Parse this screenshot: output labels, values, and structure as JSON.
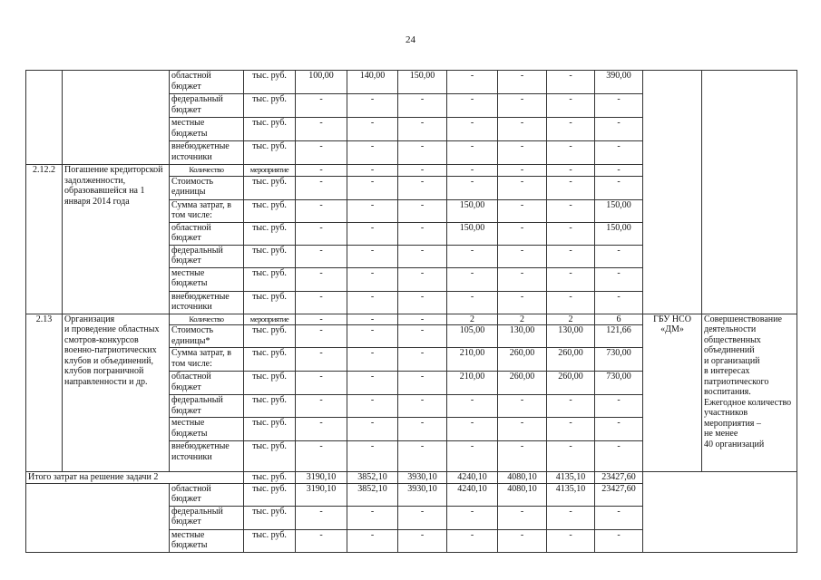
{
  "page_number": "24",
  "blocks": [
    {
      "num": "",
      "name": "",
      "executor": "",
      "result": "",
      "rows": [
        {
          "source": "областной бюджет",
          "unit": "тыс. руб.",
          "values": [
            "100,00",
            "140,00",
            "150,00",
            "-",
            "-",
            "-",
            "390,00"
          ]
        },
        {
          "source": "федеральный бюджет",
          "unit": "тыс. руб.",
          "values": [
            "-",
            "-",
            "-",
            "-",
            "-",
            "-",
            "-"
          ]
        },
        {
          "source": "местные бюджеты",
          "unit": "тыс. руб.",
          "values": [
            "-",
            "-",
            "-",
            "-",
            "-",
            "-",
            "-"
          ]
        },
        {
          "source": "внебюджетные источники",
          "unit": "тыс. руб.",
          "values": [
            "-",
            "-",
            "-",
            "-",
            "-",
            "-",
            "-"
          ]
        }
      ]
    },
    {
      "num": "2.12.2",
      "name": "Погашение кредиторской задолженности, образовавшейся на 1 января 2014 года",
      "executor": "",
      "result": "",
      "rows": [
        {
          "source": "Количество",
          "unit": "мероприятие",
          "values": [
            "-",
            "-",
            "-",
            "-",
            "-",
            "-",
            "-"
          ]
        },
        {
          "source": "Стоимость единицы",
          "unit": "тыс. руб.",
          "values": [
            "-",
            "-",
            "-",
            "-",
            "-",
            "-",
            "-"
          ]
        },
        {
          "source": "Сумма затрат, в том числе:",
          "unit": "тыс. руб.",
          "values": [
            "-",
            "-",
            "-",
            "150,00",
            "-",
            "-",
            "150,00"
          ]
        },
        {
          "source": "областной бюджет",
          "unit": "тыс. руб.",
          "values": [
            "-",
            "-",
            "-",
            "150,00",
            "-",
            "-",
            "150,00"
          ]
        },
        {
          "source": "федеральный бюджет",
          "unit": "тыс. руб.",
          "values": [
            "-",
            "-",
            "-",
            "-",
            "-",
            "-",
            "-"
          ]
        },
        {
          "source": "местные бюджеты",
          "unit": "тыс. руб.",
          "values": [
            "-",
            "-",
            "-",
            "-",
            "-",
            "-",
            "-"
          ]
        },
        {
          "source": "внебюджетные источники",
          "unit": "тыс. руб.",
          "values": [
            "-",
            "-",
            "-",
            "-",
            "-",
            "-",
            "-"
          ]
        }
      ]
    },
    {
      "num": "2.13",
      "name": "Организация\nи проведение областных смотров-конкурсов военно-патриотических клубов и объединений, клубов пограничной направленности и др.",
      "executor": "ГБУ НСО «ДМ»",
      "result": "Совершенствование деятельности общественных объединений\nи организаций\nв интересах патриотического воспитания. Ежегодное количество участников мероприятия –\nне менее\n40 организаций",
      "rows": [
        {
          "source": "Количество",
          "unit": "мероприятие",
          "values": [
            "-",
            "-",
            "-",
            "2",
            "2",
            "2",
            "6"
          ]
        },
        {
          "source": "Стоимость единицы*",
          "unit": "тыс. руб.",
          "values": [
            "-",
            "-",
            "-",
            "105,00",
            "130,00",
            "130,00",
            "121,66"
          ]
        },
        {
          "source": "Сумма затрат, в том числе:",
          "unit": "тыс. руб.",
          "values": [
            "-",
            "-",
            "-",
            "210,00",
            "260,00",
            "260,00",
            "730,00"
          ]
        },
        {
          "source": "областной бюджет",
          "unit": "тыс. руб.",
          "values": [
            "-",
            "-",
            "-",
            "210,00",
            "260,00",
            "260,00",
            "730,00"
          ]
        },
        {
          "source": "федеральный бюджет",
          "unit": "тыс. руб.",
          "values": [
            "-",
            "-",
            "-",
            "-",
            "-",
            "-",
            "-"
          ]
        },
        {
          "source": "местные бюджеты",
          "unit": "тыс. руб.",
          "values": [
            "-",
            "-",
            "-",
            "-",
            "-",
            "-",
            "-"
          ]
        },
        {
          "source": "внебюджетные источники",
          "unit": "тыс. руб.",
          "values": [
            "-",
            "-",
            "-",
            "-",
            "-",
            "-",
            "-"
          ]
        }
      ]
    }
  ],
  "total": {
    "label": "Итого затрат на решение задачи 2",
    "unit": "тыс. руб.",
    "values": [
      "3190,10",
      "3852,10",
      "3930,10",
      "4240,10",
      "4080,10",
      "4135,10",
      "23427,60"
    ],
    "rows": [
      {
        "source": "областной бюджет",
        "unit": "тыс. руб.",
        "values": [
          "3190,10",
          "3852,10",
          "3930,10",
          "4240,10",
          "4080,10",
          "4135,10",
          "23427,60"
        ]
      },
      {
        "source": "федеральный бюджет",
        "unit": "тыс. руб.",
        "values": [
          "-",
          "-",
          "-",
          "-",
          "-",
          "-",
          "-"
        ]
      },
      {
        "source": "местные бюджеты",
        "unit": "тыс. руб.",
        "values": [
          "-",
          "-",
          "-",
          "-",
          "-",
          "-",
          "-"
        ]
      }
    ]
  }
}
